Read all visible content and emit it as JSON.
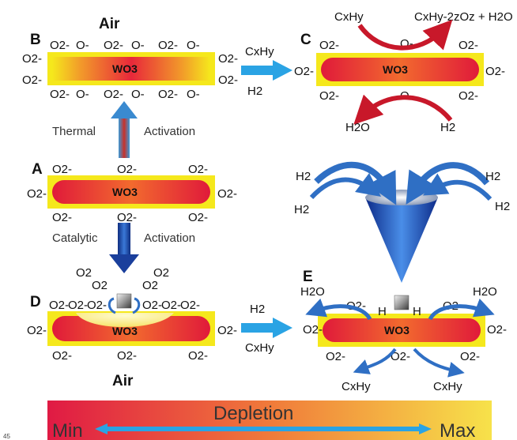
{
  "panels": {
    "A": {
      "letter": "A",
      "core": "WO3",
      "top_ions": [
        "O2-",
        "O2-",
        "O2-"
      ],
      "bottom_ions": [
        "O2-",
        "O2-",
        "O2-"
      ],
      "left_ion": "O2-",
      "right_ion": "O2-"
    },
    "B": {
      "letter": "B",
      "env": "Air",
      "core": "WO3",
      "top_ions": [
        "O2-",
        "O-",
        "O2-",
        "O-",
        "O2-",
        "O-"
      ],
      "bottom_ions": [
        "O2-",
        "O-",
        "O2-",
        "O-",
        "O2-",
        "O-"
      ],
      "left_ions": [
        "O2-",
        "O2-"
      ],
      "right_ions": [
        "O2-",
        "O2-"
      ]
    },
    "C": {
      "letter": "C",
      "core": "WO3",
      "top_ions": [
        "O2-",
        "O-",
        "O2-"
      ],
      "bottom_ions": [
        "O2-",
        "O-",
        "O2-"
      ],
      "left_ion": "O2-",
      "right_ion": "O2-",
      "top_in": "CxHy",
      "top_out": "CxHy-2zOz + H2O",
      "bottom_in": "H2",
      "bottom_out": "H2O"
    },
    "D": {
      "letter": "D",
      "env": "Air",
      "core": "WO3",
      "o2_labels": [
        "O2",
        "O2",
        "O2",
        "O2"
      ],
      "top_ions": [
        "O2-",
        "O2-",
        "O2-",
        "O2-",
        "O2-",
        "O2-"
      ],
      "bottom_ions": [
        "O2-",
        "O2-",
        "O2-"
      ],
      "left_ion": "O2-",
      "right_ion": "O2-"
    },
    "E": {
      "letter": "E",
      "core": "WO3",
      "h2_labels": [
        "H2",
        "H2",
        "H2",
        "H2"
      ],
      "h2o_labels": [
        "H2O",
        "H2O"
      ],
      "h_labels": [
        "H",
        "H"
      ],
      "top_ions": [
        "O2-",
        "O2-"
      ],
      "bottom_ions": [
        "O2-",
        "O2-",
        "O2-"
      ],
      "left_ion": "O2-",
      "right_ion": "O2-",
      "products": [
        "CxHy",
        "CxHy"
      ]
    }
  },
  "arrows": {
    "thermal": [
      "Thermal",
      "Activation"
    ],
    "catalytic": [
      "Catalytic",
      "Activation"
    ],
    "b_to_c": [
      "CxHy",
      "H2"
    ],
    "d_to_e": [
      "H2",
      "CxHy"
    ]
  },
  "scale": {
    "title": "Depletion",
    "min": "Min",
    "max": "Max"
  },
  "footnote": "45",
  "colors": {
    "shell": "#f5e81c",
    "core_red": "#e01a3a",
    "core_orange": "#f08a2a",
    "up_arrow": "#c9322a",
    "down_arrow": "#1a3f9c",
    "cyan_arrow": "#2aa3e4",
    "red_curve": "#c8182a",
    "blue_curve": "#2f6fc4"
  }
}
